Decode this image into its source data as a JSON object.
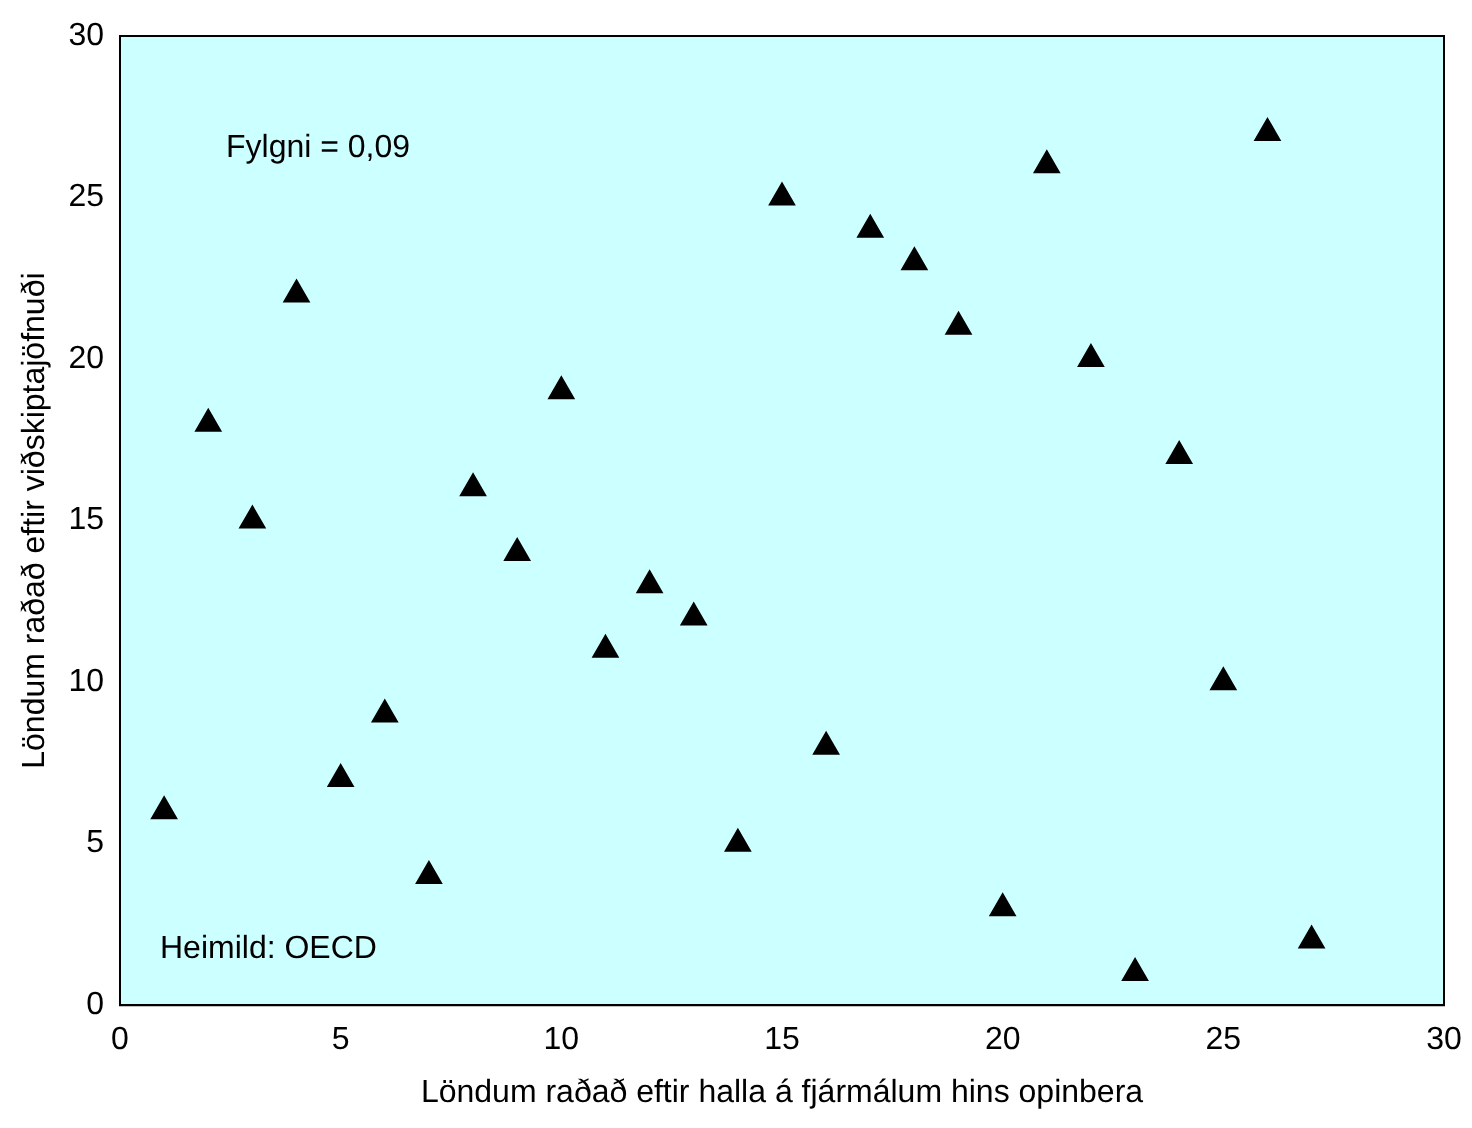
{
  "chart_data": {
    "type": "scatter",
    "xlabel": "Löndum raðað eftir halla á fjármálum hins opinbera",
    "ylabel": "Löndum raðað eftir viðskiptajöfnuði",
    "x": [
      1,
      2,
      3,
      4,
      5,
      6,
      7,
      8,
      9,
      10,
      11,
      12,
      13,
      14,
      15,
      16,
      17,
      18,
      19,
      20,
      21,
      22,
      23,
      24,
      25,
      26,
      27
    ],
    "series": [
      {
        "color": "#000000",
        "values": [
          6,
          18,
          15,
          22,
          7,
          9,
          4,
          16,
          14,
          19,
          11,
          13,
          12,
          5,
          25,
          8,
          24,
          23,
          21,
          3,
          26,
          20,
          1,
          17,
          10,
          27,
          2
        ]
      }
    ],
    "xlim": [
      0,
      30
    ],
    "xticks": [
      0,
      5,
      10,
      15,
      20,
      25,
      30
    ],
    "ylim": [
      0,
      30
    ],
    "yticks": [
      0,
      5,
      10,
      15,
      20,
      25,
      30
    ],
    "marker": "triangle",
    "grid": false,
    "legend": false,
    "annotations": [
      "Fylgni = 0,09",
      "Heimild: OECD"
    ]
  }
}
